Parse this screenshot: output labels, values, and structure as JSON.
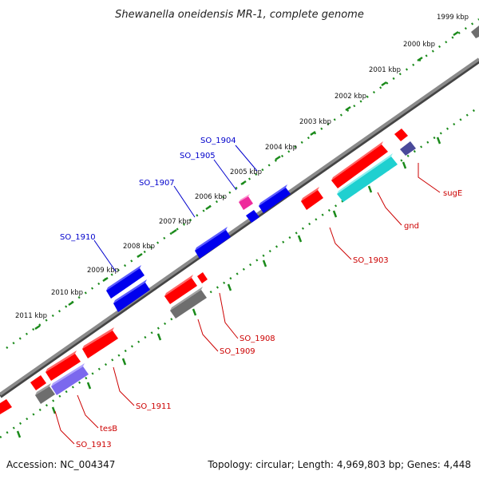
{
  "title": "Shewanella oneidensis MR-1, complete genome",
  "footer": {
    "accession": "Accession: NC_004347",
    "summary": "Topology: circular; Length: 4,969,803 bp; Genes: 4,448"
  },
  "colors": {
    "backbone": "#7a7a7a",
    "tick": "#1a8a1a",
    "forward_label": "#0000cc",
    "reverse_label": "#cc0000",
    "red": "#ff0000",
    "blue": "#0000ee",
    "magenta": "#ee2b9b",
    "gray": "#6e6e6e",
    "cyan": "#1fd0d0",
    "purple": "#7b68ee",
    "navy": "#4a4a9a"
  },
  "ruler": {
    "labels": [
      "1999 kbp",
      "2000 kbp",
      "2001 kbp",
      "2002 kbp",
      "2003 kbp",
      "2004 kbp",
      "2005 kbp",
      "2006 kbp",
      "2007 kbp",
      "2008 kbp",
      "2009 kbp",
      "2010 kbp",
      "2011 kbp"
    ]
  },
  "gene_labels": {
    "forward": [
      "SO_1904",
      "SO_1905",
      "SO_1907",
      "SO_1910"
    ],
    "reverse": [
      "sugE",
      "gnd",
      "SO_1903",
      "SO_1908",
      "SO_1909",
      "SO_1911",
      "tesB",
      "SO_1913"
    ]
  }
}
